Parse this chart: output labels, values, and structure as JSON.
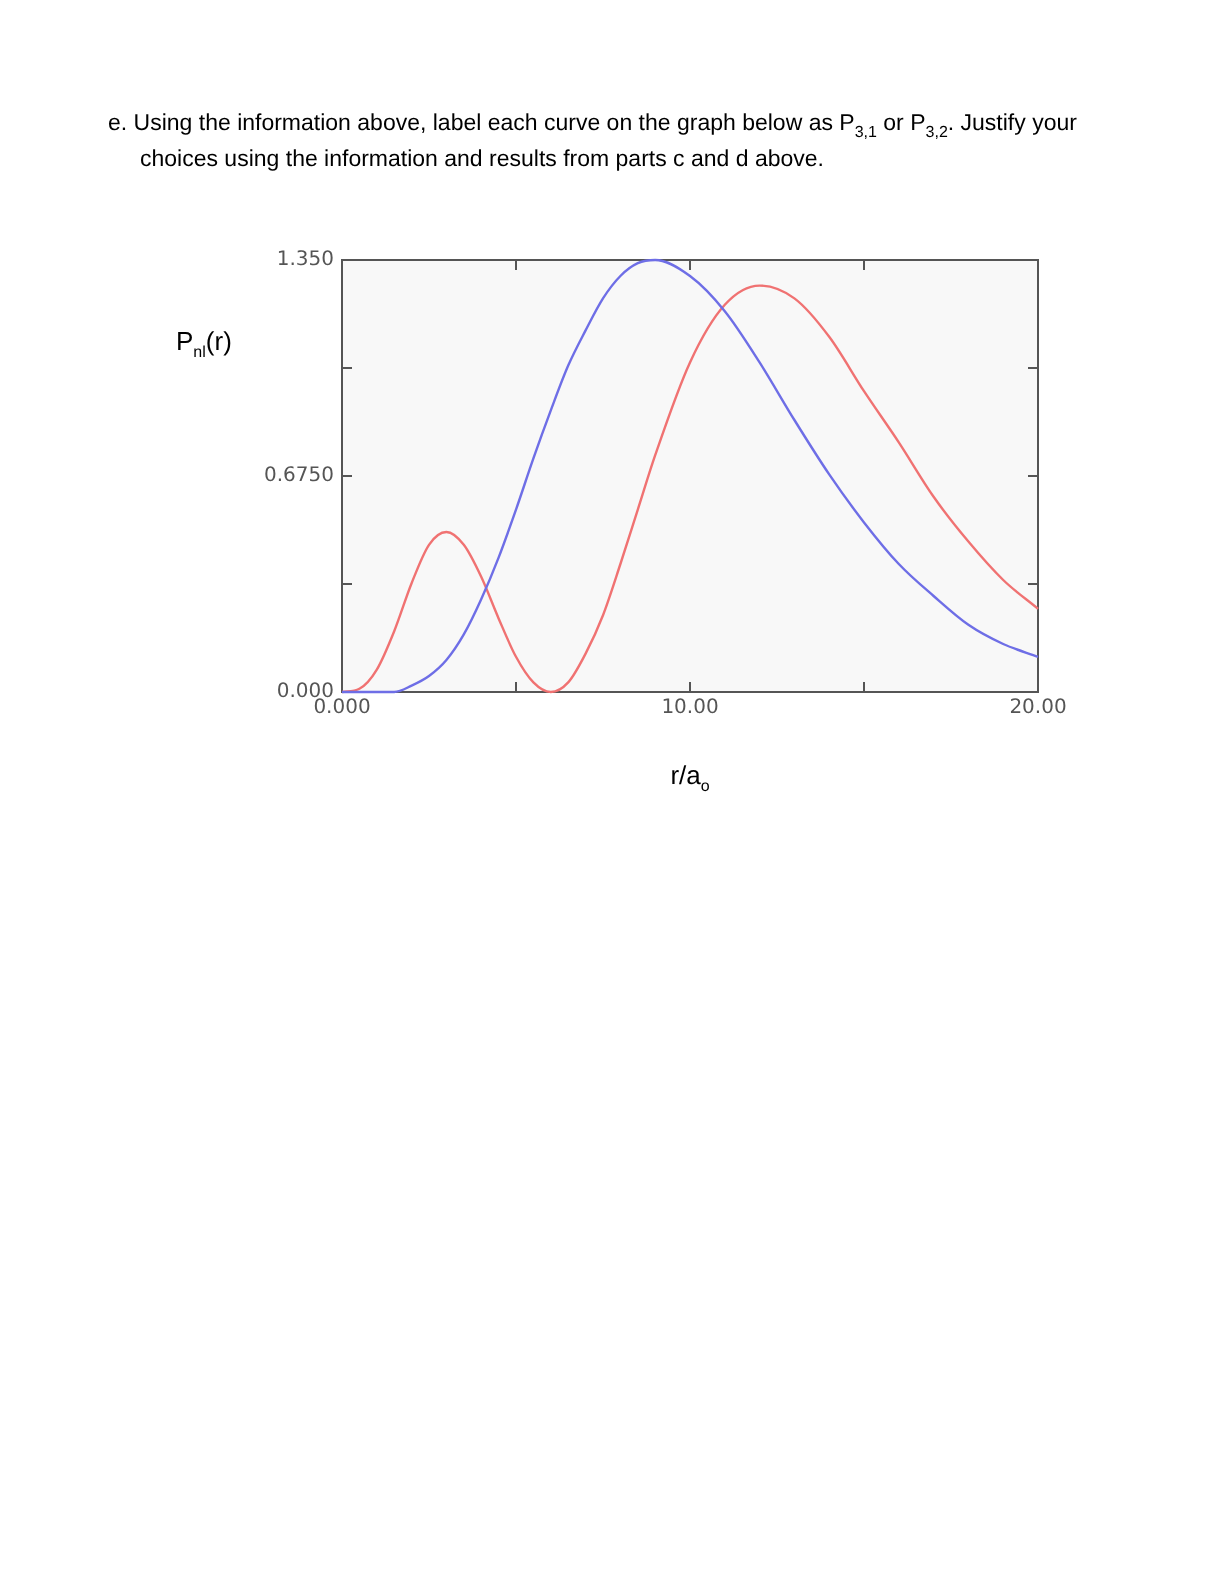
{
  "chart_data": {
    "type": "line",
    "title": "e.  Using the information above, label each curve on the graph below as P$_{3,1}$ or P$_{3,2}$. Justify your choices using the information and results from parts c and d above.",
    "xlabel": "r/a$_{o}$",
    "ylabel": "P$_{nl}$(r)",
    "marker": "none",
    "x": [
      0,
      0.5,
      1,
      1.5,
      2,
      2.5,
      3,
      3.5,
      4,
      4.5,
      5,
      5.5,
      6,
      6.5,
      7,
      7.5,
      8,
      8.5,
      9,
      10,
      11,
      12,
      13,
      14,
      15,
      16,
      17,
      18,
      19,
      20
    ],
    "series": [
      {
        "color": "#6e6ee6",
        "values": [
          0,
          0,
          0,
          0,
          0.02,
          0.05,
          0.1,
          0.18,
          0.29,
          0.42,
          0.57,
          0.73,
          0.88,
          1.02,
          1.13,
          1.23,
          1.3,
          1.34,
          1.35,
          1.3,
          1.19,
          1.03,
          0.85,
          0.68,
          0.53,
          0.4,
          0.3,
          0.21,
          0.15,
          0.11
        ]
      },
      {
        "color": "#f07272",
        "values": [
          0,
          0.01,
          0.07,
          0.19,
          0.34,
          0.46,
          0.5,
          0.46,
          0.36,
          0.23,
          0.11,
          0.03,
          0,
          0.03,
          0.12,
          0.24,
          0.4,
          0.57,
          0.74,
          1.03,
          1.21,
          1.27,
          1.23,
          1.11,
          0.94,
          0.78,
          0.61,
          0.47,
          0.35,
          0.26
        ]
      }
    ],
    "xlim": [
      0,
      20
    ],
    "xticks": [
      {
        "value": 0,
        "label": "0.000"
      },
      {
        "value": 5,
        "label": null
      },
      {
        "value": 10,
        "label": "10.00"
      },
      {
        "value": 15,
        "label": null
      },
      {
        "value": 20,
        "label": "20.00"
      }
    ],
    "ylim": [
      0,
      1.35
    ],
    "yticks": [
      {
        "value": 0,
        "label": "0.000"
      },
      {
        "value": 0.3375,
        "label": null
      },
      {
        "value": 0.675,
        "label": "0.6750"
      },
      {
        "value": 1.0125,
        "label": null
      },
      {
        "value": 1.35,
        "label": "1.350"
      }
    ]
  }
}
